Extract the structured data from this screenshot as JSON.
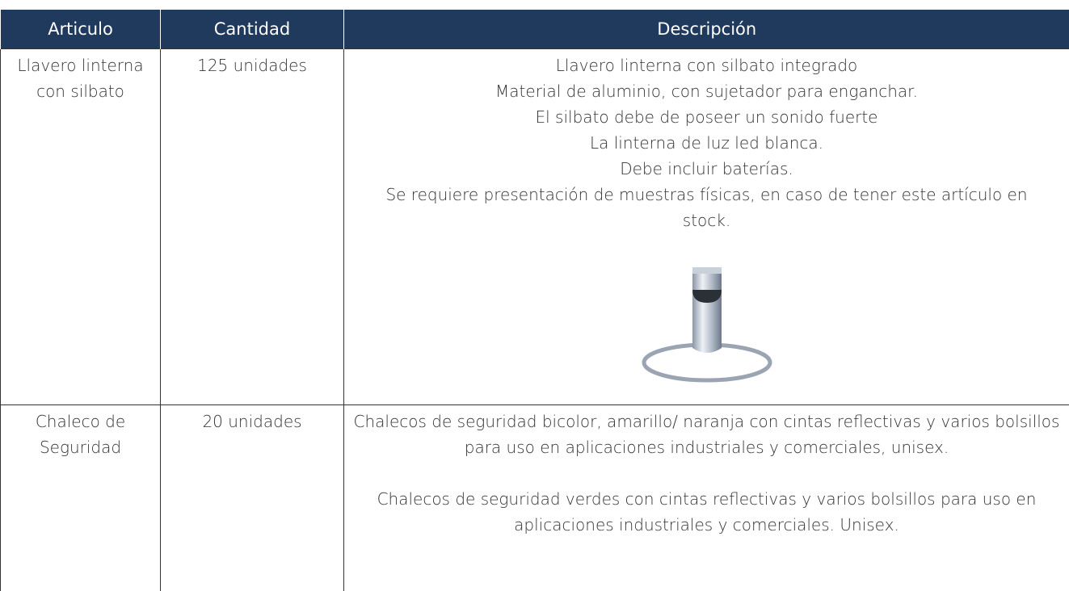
{
  "table": {
    "headers": [
      "Articulo",
      "Cantidad",
      "Descripción"
    ],
    "rows": [
      [
        "Llavero linterna con silbato",
        "125 unidades",
        [
          "Llavero linterna con silbato integrado",
          "Material de aluminio, con sujetador para enganchar.",
          "El silbato debe de poseer un sonido fuerte",
          "La linterna de luz led blanca.",
          "Debe incluir baterías.",
          "Se requiere presentación de muestras físicas, en caso de tener este artículo en stock."
        ]
      ],
      [
        "Chaleco de Seguridad",
        "20 unidades",
        [
          "Chalecos de seguridad bicolor, amarillo/ naranja con cintas reflectivas y varios bolsillos para uso en aplicaciones industriales y comerciales, unisex.",
          "Chalecos de seguridad verdes con cintas reflectivas y varios bolsillos para uso en aplicaciones industriales y comerciales. Unisex."
        ]
      ]
    ]
  }
}
